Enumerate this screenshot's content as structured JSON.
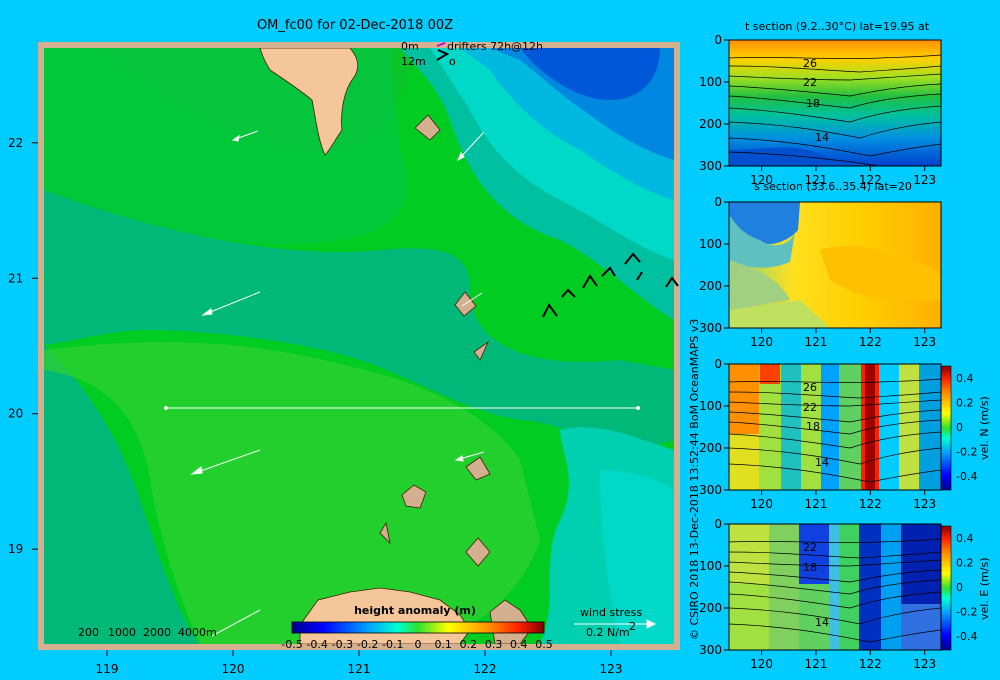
{
  "title": "OM_fc00 for 02-Dec-2018 00Z",
  "drifter_legend": {
    "depth_top": "0m",
    "depth_bottom": "12m",
    "label": "drifters 72h@12h"
  },
  "copyright": "© CSIRO 2018   13-Dec-2018 13:52:44 BoM OceanMAPS v3",
  "map": {
    "x_ticks": [
      "119",
      "120",
      "121",
      "122",
      "123"
    ],
    "y_ticks": [
      "22",
      "21",
      "20",
      "19"
    ],
    "xlim": [
      118.5,
      123.5
    ],
    "ylim": [
      18.3,
      22.7
    ],
    "section_lat": 20,
    "section_lon": [
      119.5,
      123.2
    ],
    "bathy_legend": [
      "200",
      "1000",
      "2000",
      "4000m"
    ],
    "wind_label": "wind stress",
    "wind_scale": "0.2 N/m",
    "wind_scale_exp": "2",
    "colorbar_title": "height anomaly (m)",
    "colorbar_ticks": [
      "-0.5",
      "-0.4",
      "-0.3",
      "-0.2",
      "-0.1",
      "0",
      "0.1",
      "0.2",
      "0.3",
      "0.4",
      "0.5"
    ],
    "colors": {
      "land": "#f5c69a",
      "ocean_mid": "#00cc22",
      "ocean_high": "#2ed12b",
      "ocean_low": "#00b080",
      "cyan": "#00d8c0",
      "blue": "#0058d8",
      "frame": "#d4b090"
    }
  },
  "chart_data": [
    {
      "type": "heatmap",
      "title": "OM_fc00 for 02-Dec-2018 00Z",
      "colorbar_label": "height anomaly (m)",
      "colorbar_range": [
        -0.5,
        0.5
      ],
      "xlim": [
        118.5,
        123.5
      ],
      "ylim": [
        18.3,
        22.7
      ],
      "x_ticks": [
        119,
        120,
        121,
        122,
        123
      ],
      "y_ticks": [
        19,
        20,
        21,
        22
      ]
    },
    {
      "type": "heatmap",
      "title": "t section (9.2..30°C) lat=19.95 at",
      "x_ticks": [
        "120",
        "121",
        "122",
        "123"
      ],
      "y_ticks": [
        "0",
        "100",
        "200",
        "300"
      ],
      "contour_labels": [
        "26",
        "22",
        "18",
        "14"
      ]
    },
    {
      "type": "heatmap",
      "title": "s section (33.6..35.4) lat=20",
      "x_ticks": [
        "120",
        "121",
        "122",
        "123"
      ],
      "y_ticks": [
        "0",
        "100",
        "200",
        "300"
      ]
    },
    {
      "type": "heatmap",
      "ylabel_right": "vel. N (m/s)",
      "x_ticks": [
        "120",
        "121",
        "122",
        "123"
      ],
      "y_ticks": [
        "0",
        "100",
        "200",
        "300"
      ],
      "colorbar_ticks": [
        "0.4",
        "0.2",
        "0",
        "-0.2",
        "-0.4"
      ],
      "contour_labels": [
        "26",
        "22",
        "18",
        "14"
      ]
    },
    {
      "type": "heatmap",
      "ylabel_right": "vel. E (m/s)",
      "x_ticks": [
        "120",
        "121",
        "122",
        "123"
      ],
      "y_ticks": [
        "0",
        "100",
        "200",
        "300"
      ],
      "colorbar_ticks": [
        "0.4",
        "0.2",
        "0",
        "-0.2",
        "-0.4"
      ],
      "contour_labels": [
        "22",
        "18",
        "14"
      ]
    }
  ]
}
